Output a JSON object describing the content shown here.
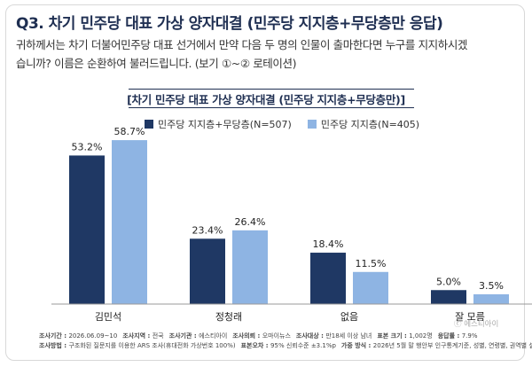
{
  "question": {
    "title": "Q3. 차기 민주당 대표 가상 양자대결 (민주당 지지층+무당층만 응답)",
    "line1": "귀하께서는 차기 더불어민주당 대표 선거에서 만약 다음 두 명의 인물이 출마한다면 누구를 지지하시겠",
    "line2": "습니까? 이름은 순환하여 불러드립니다. (보기 ①~② 로테이션)"
  },
  "chart_data": {
    "type": "bar",
    "title": "[차기 민주당 대표 가상 양자대결 (민주당 지지층+무당층만)]",
    "categories": [
      "김민석",
      "정청래",
      "없음",
      "잘 모름"
    ],
    "series": [
      {
        "name": "민주당 지지층+무당층(N=507)",
        "color": "#1f3864",
        "values": [
          53.2,
          23.4,
          18.4,
          5.0
        ],
        "labels": [
          "53.2%",
          "23.4%",
          "18.4%",
          "5.0%"
        ]
      },
      {
        "name": "민주당 지지층(N=405)",
        "color": "#8eb4e3",
        "values": [
          58.7,
          26.4,
          11.5,
          3.5
        ],
        "labels": [
          "58.7%",
          "26.4%",
          "11.5%",
          "3.5%"
        ]
      }
    ],
    "ylim": [
      0,
      60
    ],
    "grid": false,
    "legend_position": "top"
  },
  "footer": {
    "row1": [
      {
        "label": "조사기간 :",
        "value": "2026.06.09~10"
      },
      {
        "label": "조사지역 :",
        "value": "전국"
      },
      {
        "label": "조사기관 :",
        "value": "에스티아이"
      },
      {
        "label": "조사의뢰 :",
        "value": "오마이뉴스"
      },
      {
        "label": "조사대상 :",
        "value": "만18세 이상 남녀"
      },
      {
        "label": "표본 크기 :",
        "value": "1,002명"
      },
      {
        "label": "응답률 :",
        "value": "7.9%"
      }
    ],
    "row2": [
      {
        "label": "조사방법 :",
        "value": "구조화된 질문지를 이용한 ARS 조사(휴대전화 가상번호 100%)"
      },
      {
        "label": "표본오차 :",
        "value": "95% 신뢰수준 ±3.1%p"
      },
      {
        "label": "가중 방식 :",
        "value": "2026년 5월 말 행안부 인구통계기준, 성별, 연령별, 권역별 셀가중"
      }
    ]
  },
  "brand": {
    "logo_text": "ⓒ 에스티아이"
  }
}
